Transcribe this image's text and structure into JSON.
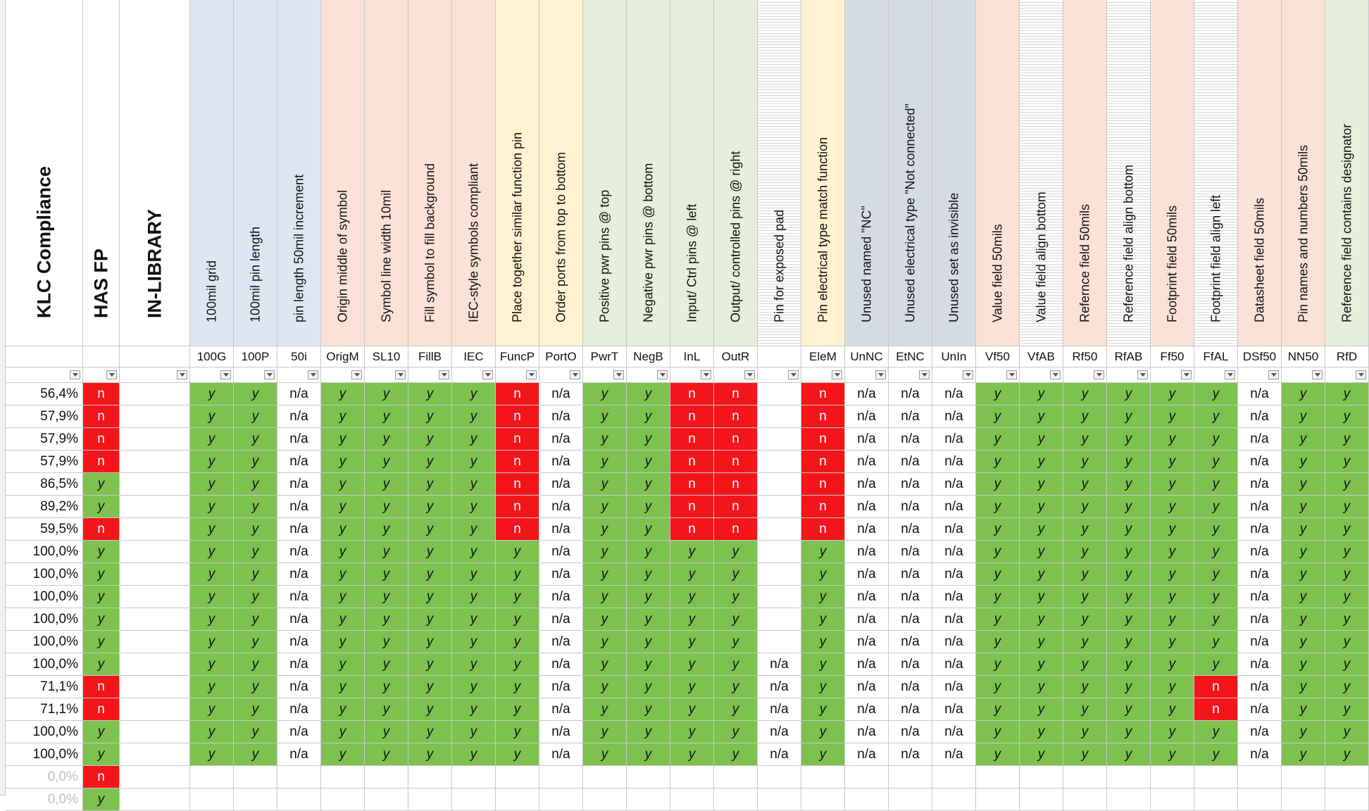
{
  "colors": {
    "green": "#7dc14f",
    "red": "#f4151b",
    "white": "#ffffff",
    "blue_header": "#dce7f2",
    "salmon_header": "#fbe1d6",
    "yellow_header": "#fff2d1",
    "green_header": "#e5efdb",
    "gray_header": "#d5dbe3",
    "greyed_text": "#bdbdbd"
  },
  "columns": [
    {
      "title": "KLC Compliance",
      "code": "",
      "group": "white",
      "big": true
    },
    {
      "title": "HAS FP",
      "code": "",
      "group": "white",
      "big": true
    },
    {
      "title": "IN-LIBRARY",
      "code": "",
      "group": "white",
      "big": true
    },
    {
      "title": "100mil grid",
      "code": "100G",
      "group": "blue_header"
    },
    {
      "title": "100mil pin length",
      "code": "100P",
      "group": "blue_header"
    },
    {
      "title": "pin length 50mil increment",
      "code": "50i",
      "group": "blue_header"
    },
    {
      "title": "Origin middle of symbol",
      "code": "OrigM",
      "group": "salmon_header"
    },
    {
      "title": "Symbol line width 10mil",
      "code": "SL10",
      "group": "salmon_header"
    },
    {
      "title": "Fill symbol to fill background",
      "code": "FillB",
      "group": "salmon_header"
    },
    {
      "title": "IEC-style symbols compliant",
      "code": "IEC",
      "group": "salmon_header"
    },
    {
      "title": "Place together similar function pin",
      "code": "FuncP",
      "group": "yellow_header"
    },
    {
      "title": "Order ports from top to bottom",
      "code": "PortO",
      "group": "yellow_header"
    },
    {
      "title": "Positive pwr pins @ top",
      "code": "PwrT",
      "group": "green_header"
    },
    {
      "title": "Negative pwr pins @ bottom",
      "code": "NegB",
      "group": "green_header"
    },
    {
      "title": "Input/ Ctrl pins @ left",
      "code": "InL",
      "group": "green_header"
    },
    {
      "title": "Output/ controlled pins @ right",
      "code": "OutR",
      "group": "green_header"
    },
    {
      "title": "Pin for exposed pad",
      "code": "",
      "group": "striped"
    },
    {
      "title": "Pin electrical type match function",
      "code": "EleM",
      "group": "yellow_header"
    },
    {
      "title": "Unused named \"NC\"",
      "code": "UnNC",
      "group": "gray_header"
    },
    {
      "title": "Unused electrical type \"Not connected\"",
      "code": "EtNC",
      "group": "gray_header"
    },
    {
      "title": "Unused set as invisible",
      "code": "UnIn",
      "group": "gray_header"
    },
    {
      "title": "Value field 50mils",
      "code": "Vf50",
      "group": "salmon_header"
    },
    {
      "title": "Value field align bottom",
      "code": "VfAB",
      "group": "striped"
    },
    {
      "title": "Refernce field 50mils",
      "code": "Rf50",
      "group": "salmon_header"
    },
    {
      "title": "Reference field align bottom",
      "code": "RfAB",
      "group": "striped"
    },
    {
      "title": "Footprint field 50mils",
      "code": "Ff50",
      "group": "salmon_header"
    },
    {
      "title": "Footprint field align left",
      "code": "FfAL",
      "group": "striped"
    },
    {
      "title": "Datasheet field 50mils",
      "code": "DSf50",
      "group": "salmon_header"
    },
    {
      "title": "Pin names and numbers 50mils",
      "code": "NN50",
      "group": "salmon_header"
    },
    {
      "title": "Reference field contains designator",
      "code": "RfD",
      "group": "green_header"
    }
  ],
  "rows": [
    {
      "klc": "56,4%",
      "v": [
        "n",
        "",
        "y",
        "y",
        "n/a",
        "y",
        "y",
        "y",
        "y",
        "n",
        "n/a",
        "y",
        "y",
        "n",
        "n",
        "",
        "n",
        "n/a",
        "n/a",
        "n/a",
        "y",
        "y",
        "y",
        "y",
        "y",
        "y",
        "n/a",
        "y",
        "y"
      ]
    },
    {
      "klc": "57,9%",
      "v": [
        "n",
        "",
        "y",
        "y",
        "n/a",
        "y",
        "y",
        "y",
        "y",
        "n",
        "n/a",
        "y",
        "y",
        "n",
        "n",
        "",
        "n",
        "n/a",
        "n/a",
        "n/a",
        "y",
        "y",
        "y",
        "y",
        "y",
        "y",
        "n/a",
        "y",
        "y"
      ]
    },
    {
      "klc": "57,9%",
      "v": [
        "n",
        "",
        "y",
        "y",
        "n/a",
        "y",
        "y",
        "y",
        "y",
        "n",
        "n/a",
        "y",
        "y",
        "n",
        "n",
        "",
        "n",
        "n/a",
        "n/a",
        "n/a",
        "y",
        "y",
        "y",
        "y",
        "y",
        "y",
        "n/a",
        "y",
        "y"
      ]
    },
    {
      "klc": "57,9%",
      "v": [
        "n",
        "",
        "y",
        "y",
        "n/a",
        "y",
        "y",
        "y",
        "y",
        "n",
        "n/a",
        "y",
        "y",
        "n",
        "n",
        "",
        "n",
        "n/a",
        "n/a",
        "n/a",
        "y",
        "y",
        "y",
        "y",
        "y",
        "y",
        "n/a",
        "y",
        "y"
      ]
    },
    {
      "klc": "86,5%",
      "v": [
        "y",
        "",
        "y",
        "y",
        "n/a",
        "y",
        "y",
        "y",
        "y",
        "n",
        "n/a",
        "y",
        "y",
        "n",
        "n",
        "",
        "n",
        "n/a",
        "n/a",
        "n/a",
        "y",
        "y",
        "y",
        "y",
        "y",
        "y",
        "n/a",
        "y",
        "y"
      ]
    },
    {
      "klc": "89,2%",
      "v": [
        "y",
        "",
        "y",
        "y",
        "n/a",
        "y",
        "y",
        "y",
        "y",
        "n",
        "n/a",
        "y",
        "y",
        "n",
        "n",
        "",
        "n",
        "n/a",
        "n/a",
        "n/a",
        "y",
        "y",
        "y",
        "y",
        "y",
        "y",
        "n/a",
        "y",
        "y"
      ]
    },
    {
      "klc": "59,5%",
      "v": [
        "n",
        "",
        "y",
        "y",
        "n/a",
        "y",
        "y",
        "y",
        "y",
        "n",
        "n/a",
        "y",
        "y",
        "n",
        "n",
        "",
        "n",
        "n/a",
        "n/a",
        "n/a",
        "y",
        "y",
        "y",
        "y",
        "y",
        "y",
        "n/a",
        "y",
        "y"
      ]
    },
    {
      "klc": "100,0%",
      "v": [
        "y",
        "",
        "y",
        "y",
        "n/a",
        "y",
        "y",
        "y",
        "y",
        "y",
        "n/a",
        "y",
        "y",
        "y",
        "y",
        "",
        "y",
        "n/a",
        "n/a",
        "n/a",
        "y",
        "y",
        "y",
        "y",
        "y",
        "y",
        "n/a",
        "y",
        "y"
      ]
    },
    {
      "klc": "100,0%",
      "v": [
        "y",
        "",
        "y",
        "y",
        "n/a",
        "y",
        "y",
        "y",
        "y",
        "y",
        "n/a",
        "y",
        "y",
        "y",
        "y",
        "",
        "y",
        "n/a",
        "n/a",
        "n/a",
        "y",
        "y",
        "y",
        "y",
        "y",
        "y",
        "n/a",
        "y",
        "y"
      ]
    },
    {
      "klc": "100,0%",
      "v": [
        "y",
        "",
        "y",
        "y",
        "n/a",
        "y",
        "y",
        "y",
        "y",
        "y",
        "n/a",
        "y",
        "y",
        "y",
        "y",
        "",
        "y",
        "n/a",
        "n/a",
        "n/a",
        "y",
        "y",
        "y",
        "y",
        "y",
        "y",
        "n/a",
        "y",
        "y"
      ]
    },
    {
      "klc": "100,0%",
      "v": [
        "y",
        "",
        "y",
        "y",
        "n/a",
        "y",
        "y",
        "y",
        "y",
        "y",
        "n/a",
        "y",
        "y",
        "y",
        "y",
        "",
        "y",
        "n/a",
        "n/a",
        "n/a",
        "y",
        "y",
        "y",
        "y",
        "y",
        "y",
        "n/a",
        "y",
        "y"
      ]
    },
    {
      "klc": "100,0%",
      "v": [
        "y",
        "",
        "y",
        "y",
        "n/a",
        "y",
        "y",
        "y",
        "y",
        "y",
        "n/a",
        "y",
        "y",
        "y",
        "y",
        "",
        "y",
        "n/a",
        "n/a",
        "n/a",
        "y",
        "y",
        "y",
        "y",
        "y",
        "y",
        "n/a",
        "y",
        "y"
      ]
    },
    {
      "klc": "100,0%",
      "v": [
        "y",
        "",
        "y",
        "y",
        "n/a",
        "y",
        "y",
        "y",
        "y",
        "y",
        "n/a",
        "y",
        "y",
        "y",
        "y",
        "n/a",
        "y",
        "n/a",
        "n/a",
        "n/a",
        "y",
        "y",
        "y",
        "y",
        "y",
        "y",
        "n/a",
        "y",
        "y"
      ]
    },
    {
      "klc": "71,1%",
      "v": [
        "n",
        "",
        "y",
        "y",
        "n/a",
        "y",
        "y",
        "y",
        "y",
        "y",
        "n/a",
        "y",
        "y",
        "y",
        "y",
        "n/a",
        "y",
        "n/a",
        "n/a",
        "n/a",
        "y",
        "y",
        "y",
        "y",
        "y",
        "n",
        "n/a",
        "y",
        "y"
      ]
    },
    {
      "klc": "71,1%",
      "v": [
        "n",
        "",
        "y",
        "y",
        "n/a",
        "y",
        "y",
        "y",
        "y",
        "y",
        "n/a",
        "y",
        "y",
        "y",
        "y",
        "n/a",
        "y",
        "n/a",
        "n/a",
        "n/a",
        "y",
        "y",
        "y",
        "y",
        "y",
        "n",
        "n/a",
        "y",
        "y"
      ]
    },
    {
      "klc": "100,0%",
      "v": [
        "y",
        "",
        "y",
        "y",
        "n/a",
        "y",
        "y",
        "y",
        "y",
        "y",
        "n/a",
        "y",
        "y",
        "y",
        "y",
        "n/a",
        "y",
        "n/a",
        "n/a",
        "n/a",
        "y",
        "y",
        "y",
        "y",
        "y",
        "y",
        "n/a",
        "y",
        "y"
      ]
    },
    {
      "klc": "100,0%",
      "v": [
        "y",
        "",
        "y",
        "y",
        "n/a",
        "y",
        "y",
        "y",
        "y",
        "y",
        "n/a",
        "y",
        "y",
        "y",
        "y",
        "n/a",
        "y",
        "n/a",
        "n/a",
        "n/a",
        "y",
        "y",
        "y",
        "y",
        "y",
        "y",
        "n/a",
        "y",
        "y"
      ]
    },
    {
      "klc": "0,0%",
      "greyed": true,
      "v": [
        "n",
        "",
        "",
        "",
        "",
        "",
        "",
        "",
        "",
        "",
        "",
        "",
        "",
        "",
        "",
        "",
        "",
        "",
        "",
        "",
        "",
        "",
        "",
        "",
        "",
        "",
        "",
        "",
        ""
      ]
    },
    {
      "klc": "0,0%",
      "greyed": true,
      "v": [
        "y",
        "",
        "",
        "",
        "",
        "",
        "",
        "",
        "",
        "",
        "",
        "",
        "",
        "",
        "",
        "",
        "",
        "",
        "",
        "",
        "",
        "",
        "",
        "",
        "",
        "",
        "",
        "",
        ""
      ]
    }
  ]
}
